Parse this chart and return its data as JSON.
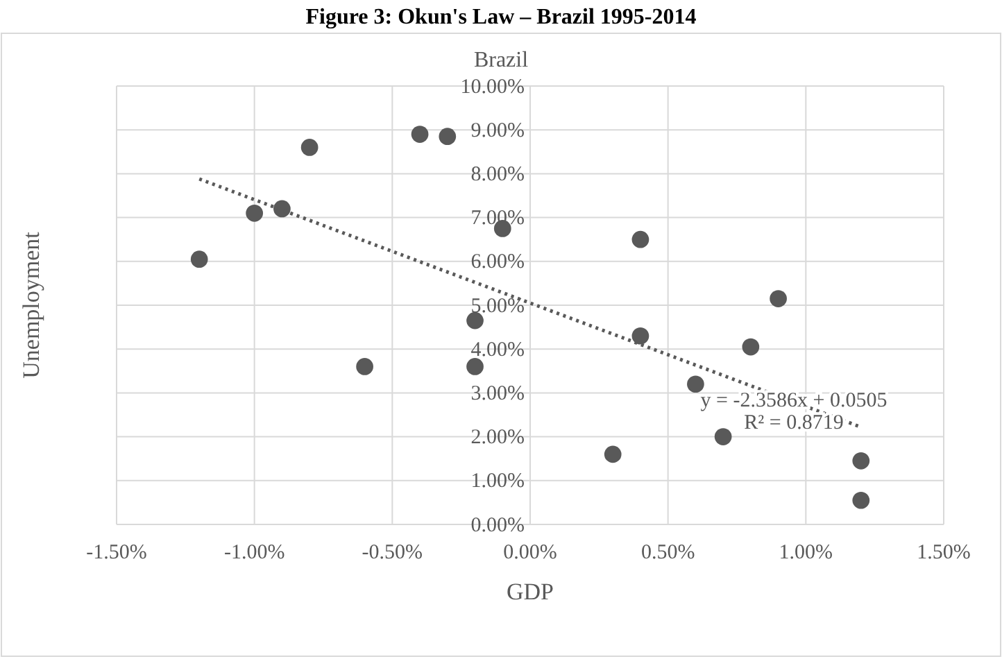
{
  "chart_data": {
    "type": "scatter",
    "title": "Figure 3: Okun's Law – Brazil 1995-2014",
    "subtitle": "Brazil",
    "xlabel": "GDP",
    "ylabel": "Unemployment",
    "xlim": [
      -1.5,
      1.5
    ],
    "xticks": [
      {
        "value": -1.5,
        "label": "-1.50%"
      },
      {
        "value": -1.0,
        "label": "-1.00%"
      },
      {
        "value": -0.5,
        "label": "-0.50%"
      },
      {
        "value": 0,
        "label": "0.00%"
      },
      {
        "value": 0.5,
        "label": "0.50%"
      },
      {
        "value": 1.0,
        "label": "1.00%"
      },
      {
        "value": 1.5,
        "label": "1.50%"
      }
    ],
    "ylim": [
      0,
      10
    ],
    "yticks": [
      {
        "value": 0,
        "label": "0.00%"
      },
      {
        "value": 1,
        "label": "1.00%"
      },
      {
        "value": 2,
        "label": "2.00%"
      },
      {
        "value": 3,
        "label": "3.00%"
      },
      {
        "value": 4,
        "label": "4.00%"
      },
      {
        "value": 5,
        "label": "5.00%"
      },
      {
        "value": 6,
        "label": "6.00%"
      },
      {
        "value": 7,
        "label": "7.00%"
      },
      {
        "value": 8,
        "label": "8.00%"
      },
      {
        "value": 9,
        "label": "9.00%"
      },
      {
        "value": 10,
        "label": "10.00%"
      }
    ],
    "grid": true,
    "series": [
      {
        "marker": "circle",
        "color": "#595959",
        "x": [
          -1.2,
          -1.0,
          -0.9,
          -0.8,
          -0.6,
          -0.4,
          -0.3,
          -0.2,
          -0.2,
          -0.1,
          0.3,
          0.4,
          0.4,
          0.6,
          0.7,
          0.8,
          0.9,
          1.2,
          1.2
        ],
        "values": [
          6.05,
          7.1,
          7.2,
          8.6,
          3.6,
          8.9,
          8.85,
          4.65,
          3.6,
          6.75,
          1.6,
          6.5,
          4.3,
          3.2,
          2.0,
          4.05,
          5.15,
          1.45,
          0.55
        ]
      },
      {
        "type": "line",
        "color": "#595959",
        "line_style": "dotted",
        "x": [
          -1.2,
          1.2
        ],
        "values": [
          7.88,
          2.22
        ]
      }
    ],
    "annotations": [
      "y = -2.3586x + 0.0505",
      "R² = 0.8719"
    ]
  }
}
